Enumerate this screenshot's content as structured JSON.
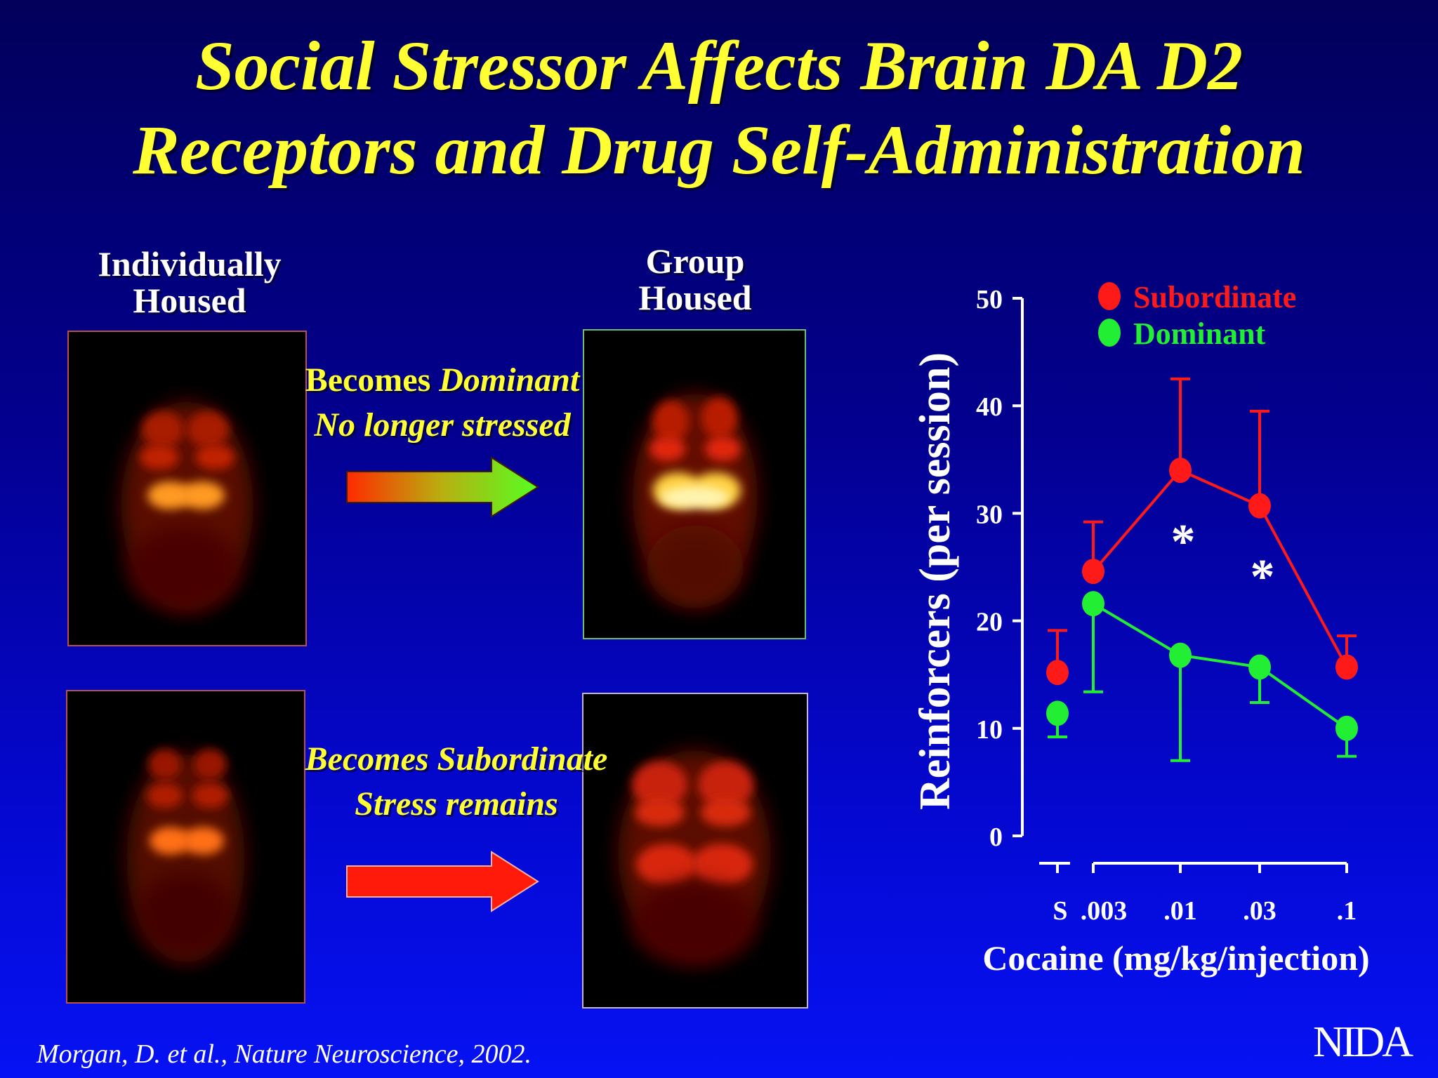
{
  "title_line1": "Social Stressor Affects Brain DA D2",
  "title_line2": "Receptors and Drug Self-Administration",
  "panels": {
    "individual_label_line1": "Individually",
    "individual_label_line2": "Housed",
    "group_label_line1": "Group",
    "group_label_line2": "Housed"
  },
  "transitions": {
    "dominant_prefix": "Becomes ",
    "dominant_word": "Dominant",
    "dominant_line2": "No longer stressed",
    "subordinate_line1": "Becomes Subordinate",
    "subordinate_line2": "Stress remains"
  },
  "colors": {
    "title": "#ffff33",
    "subordinate": "#ff1a1a",
    "dominant": "#22ee33",
    "axis": "#ffffff"
  },
  "chart_data": {
    "type": "line",
    "ylabel": "Reinforcers (per session)",
    "xlabel": "Cocaine (mg/kg/injection)",
    "ylim": [
      0,
      50
    ],
    "yticks": [
      "0",
      "10",
      "20",
      "30",
      "40",
      "50"
    ],
    "categories": [
      "S",
      ".003",
      ".01",
      ".03",
      ".1"
    ],
    "legend_position": "top-right",
    "series": [
      {
        "name": "Subordinate",
        "color": "#ff1a1a",
        "values": [
          15.2,
          24.6,
          34.0,
          30.7,
          15.7
        ],
        "errors": [
          3.9,
          4.6,
          8.5,
          8.8,
          2.9
        ]
      },
      {
        "name": "Dominant",
        "color": "#22ee33",
        "values": [
          11.4,
          21.6,
          16.8,
          15.7,
          10.0
        ],
        "errors": [
          2.2,
          8.2,
          9.8,
          3.3,
          2.6
        ]
      }
    ],
    "significance_markers": [
      "*",
      "*"
    ],
    "significance_categories": [
      ".01",
      ".03"
    ]
  },
  "citation": "Morgan, D. et al., Nature Neuroscience, 2002.",
  "logo": "NIDA"
}
